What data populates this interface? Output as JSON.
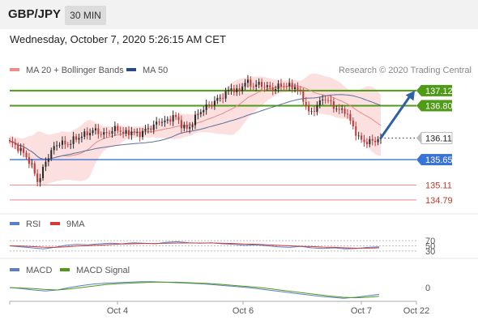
{
  "header": {
    "symbol": "GBP/JPY",
    "timeframe": "30 MIN"
  },
  "datetime": "Wednesday, October 7, 2020 5:26:15 AM CET",
  "research_credit": "Research © 2020 Trading Central",
  "colors": {
    "price_up": "#2a2a2a",
    "price_down": "#c03a3a",
    "bollinger_fill": "#fbd9d9",
    "ma20": "#e88a8a",
    "ma50": "#5c6f9c",
    "resistance": "#4f9a17",
    "pivot": "#3a73d8",
    "support": "#e88a8a",
    "current": "#333333",
    "rsi": "#5a7fc8",
    "rsi_ma": "#d43a3a",
    "macd": "#5a7fc8",
    "macd_signal": "#4f9a17"
  },
  "chart_data": [
    {
      "type": "candlestick",
      "legend": [
        {
          "name": "MA 20 + Bollinger Bands",
          "color": "#f08c8c"
        },
        {
          "name": "MA 50",
          "color": "#2c4a8a"
        }
      ],
      "ylim": [
        134.65,
        137.36
      ],
      "levels": [
        {
          "value": 137.12,
          "label": "137.12",
          "kind": "resistance"
        },
        {
          "value": 136.8,
          "label": "136.80",
          "kind": "resistance"
        },
        {
          "value": 136.11,
          "label": "136.11",
          "kind": "current"
        },
        {
          "value": 135.65,
          "label": "135.65",
          "kind": "pivot"
        },
        {
          "value": 135.11,
          "label": "135.11",
          "kind": "support"
        },
        {
          "value": 134.79,
          "label": "134.79",
          "kind": "support"
        }
      ],
      "x_ticks": [
        "Oct 4",
        "Oct 6",
        "Oct 7",
        "Oct 22"
      ],
      "arrow": {
        "from": 136.11,
        "to": 137.12
      },
      "price_path": [
        136.02,
        135.93,
        135.78,
        135.55,
        135.15,
        135.6,
        135.88,
        136.02,
        135.96,
        136.08,
        136.15,
        136.22,
        136.28,
        136.18,
        136.24,
        136.32,
        136.2,
        136.25,
        136.18,
        136.28,
        136.35,
        136.48,
        136.45,
        136.6,
        136.4,
        136.28,
        136.55,
        136.72,
        136.82,
        136.92,
        137.02,
        137.18,
        137.08,
        137.32,
        137.22,
        137.26,
        137.2,
        137.15,
        137.24,
        137.22,
        137.2,
        137.0,
        136.62,
        136.78,
        136.98,
        136.85,
        136.7,
        136.7,
        136.38,
        136.08,
        136.02,
        136.05,
        136.11
      ]
    },
    {
      "type": "line",
      "legend": [
        {
          "name": "RSI",
          "color": "#5a7fc8"
        },
        {
          "name": "9MA",
          "color": "#d43a3a"
        }
      ],
      "y_ticks": [
        "70",
        "50",
        "30"
      ],
      "ylim": [
        20,
        80
      ],
      "series": [
        {
          "name": "RSI",
          "values": [
            50,
            46,
            42,
            38,
            44,
            52,
            56,
            54,
            58,
            60,
            58,
            62,
            60,
            58,
            64,
            66,
            62,
            60,
            62,
            58,
            56,
            52,
            54,
            50,
            46,
            44,
            48,
            42,
            40,
            42,
            38,
            40,
            44,
            46
          ]
        },
        {
          "name": "9MA",
          "values": [
            50,
            49,
            47,
            45,
            44,
            46,
            49,
            51,
            53,
            55,
            57,
            58,
            59,
            59,
            60,
            61,
            61,
            61,
            61,
            60,
            59,
            57,
            56,
            54,
            52,
            50,
            48,
            47,
            45,
            44,
            42,
            41,
            41,
            42
          ]
        }
      ]
    },
    {
      "type": "line",
      "legend": [
        {
          "name": "MACD",
          "color": "#5a7fc8"
        },
        {
          "name": "MACD Signal",
          "color": "#4f9a17"
        }
      ],
      "y_ticks": [
        "0"
      ],
      "ylim": [
        -0.3,
        0.3
      ],
      "series": [
        {
          "name": "MACD",
          "values": [
            0.0,
            -0.02,
            -0.05,
            -0.07,
            -0.05,
            0.0,
            0.04,
            0.07,
            0.09,
            0.1,
            0.11,
            0.12,
            0.12,
            0.11,
            0.1,
            0.09,
            0.08,
            0.06,
            0.04,
            0.02,
            0.0,
            -0.03,
            -0.06,
            -0.09,
            -0.12,
            -0.15,
            -0.18,
            -0.2,
            -0.22,
            -0.2,
            -0.17,
            -0.14
          ]
        },
        {
          "name": "MACD Signal",
          "values": [
            0.0,
            -0.01,
            -0.02,
            -0.04,
            -0.05,
            -0.03,
            0.0,
            0.03,
            0.06,
            0.08,
            0.09,
            0.1,
            0.11,
            0.11,
            0.11,
            0.1,
            0.09,
            0.08,
            0.06,
            0.04,
            0.02,
            0.0,
            -0.03,
            -0.06,
            -0.09,
            -0.12,
            -0.15,
            -0.18,
            -0.2,
            -0.21,
            -0.2,
            -0.18
          ]
        }
      ]
    }
  ]
}
